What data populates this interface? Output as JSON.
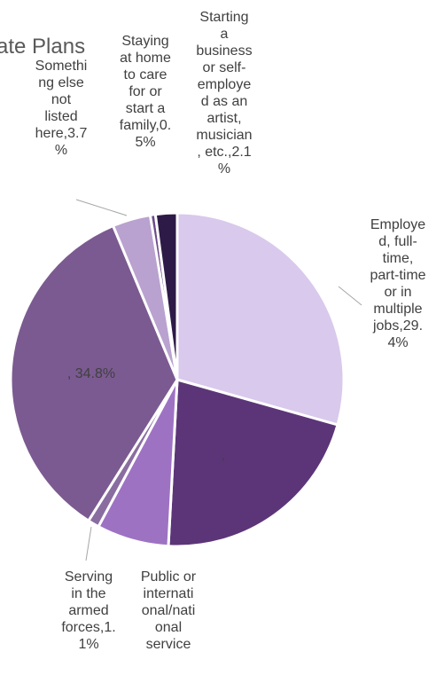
{
  "chart_data": {
    "type": "pie",
    "title": "Graduate Plans",
    "title_visible": "ate Plans",
    "slices": [
      {
        "name": "Employed, full-time, part-time or in multiple jobs",
        "value": 29.4,
        "label_lines": [
          "Employe",
          "d, full-",
          "time,",
          "part-time",
          "or in",
          "multiple",
          "jobs,29.",
          "4%"
        ],
        "color": "#d9c9ec"
      },
      {
        "name": "",
        "value": 21.5,
        "label_lines": [
          ","
        ],
        "color": "#5c3578"
      },
      {
        "name": "Public or international/national service",
        "value": 7.0,
        "label_lines": [
          "Public or",
          "internati",
          "onal/nati",
          "onal",
          "service"
        ],
        "color": "#9e72c3"
      },
      {
        "name": "Serving in the armed forces",
        "value": 1.1,
        "label_lines": [
          "Serving",
          "in the",
          "armed",
          "forces,1.",
          "1%"
        ],
        "color": "#8a6da0"
      },
      {
        "name": "",
        "value": 34.8,
        "label_lines": [
          ", 34.8%"
        ],
        "color": "#7b5a91"
      },
      {
        "name": "Something else not listed here",
        "value": 3.7,
        "label_lines": [
          "Somethi",
          "ng else",
          "not",
          "listed",
          "here,3.7",
          "%"
        ],
        "color": "#b9a2cf"
      },
      {
        "name": "Staying at home to care for or start a family",
        "value": 0.5,
        "label_lines": [
          "Staying",
          "at home",
          "to care",
          "for or",
          "start a",
          "family,0.",
          "5%"
        ],
        "color": "#6e4a8c"
      },
      {
        "name": "Starting a business or self-employed as an artist, musician, etc.",
        "value": 2.1,
        "label_lines": [
          "Starting",
          "a",
          "business",
          "or self-",
          "employe",
          "d as an",
          "artist,",
          "musician",
          ", etc.,2.1",
          "%"
        ],
        "color": "#2e1a47"
      }
    ],
    "legend": "none"
  }
}
